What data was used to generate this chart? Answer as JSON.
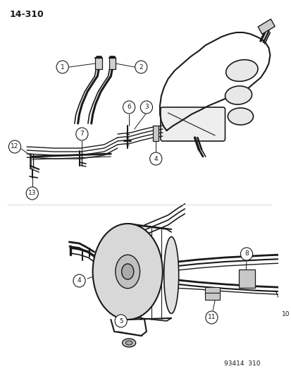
{
  "page_id": "14-310",
  "footer": "93414  310",
  "bg_color": "#ffffff",
  "line_color": "#1a1a1a",
  "fig_width": 4.14,
  "fig_height": 5.33,
  "dpi": 100
}
